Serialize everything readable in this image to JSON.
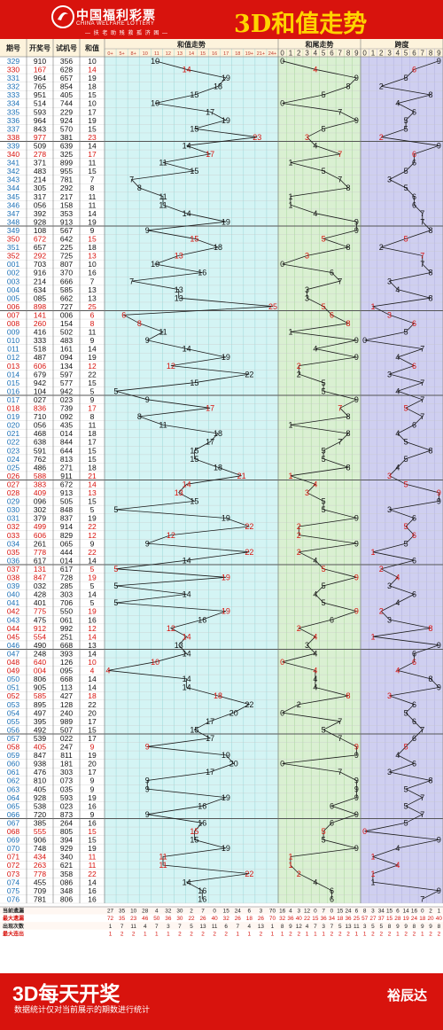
{
  "header": {
    "logo_cn": "中国福利彩票",
    "logo_en": "CHINA WELFARE LOTTERY",
    "logo_slogan": "— 扶 老 助 残 救 孤 济 困 —",
    "title": "3D和值走势"
  },
  "footer": {
    "title": "3D每天开奖",
    "subtitle": "数据统计仅对当前展示的期数进行统计",
    "author": "裕辰达"
  },
  "columns": {
    "issue": "期号",
    "draw": "开奖号",
    "test": "试机号",
    "sum": "和值",
    "sum_trend": "和值走势",
    "tail_trend": "和尾走势",
    "span_trend": "跨度",
    "sum_bins": [
      "0+",
      "5+",
      "8+",
      "10",
      "11",
      "12",
      "13",
      "14",
      "15",
      "16",
      "17",
      "18",
      "19+",
      "21+",
      "24+"
    ],
    "digits": [
      "0",
      "1",
      "2",
      "3",
      "4",
      "5",
      "6",
      "7",
      "8",
      "9"
    ]
  },
  "stats": {
    "labels": [
      "当前遗漏",
      "最大遗漏",
      "出现次数",
      "最大连出"
    ],
    "values": [
      [
        "27",
        "35",
        "10",
        "28",
        "4",
        "32",
        "30",
        "2",
        "7",
        "0",
        "15",
        "24",
        "6",
        "3",
        "70",
        "16",
        "4",
        "3",
        "12",
        "0",
        "7",
        "0",
        "15",
        "24",
        "6",
        "8",
        "3",
        "34",
        "15",
        "6",
        "14",
        "16",
        "0",
        "2",
        "1"
      ],
      [
        "72",
        "35",
        "23",
        "46",
        "50",
        "36",
        "30",
        "22",
        "26",
        "40",
        "32",
        "26",
        "18",
        "26",
        "70",
        "32",
        "36",
        "40",
        "22",
        "15",
        "36",
        "34",
        "18",
        "36",
        "25",
        "57",
        "27",
        "37",
        "15",
        "28",
        "19",
        "24",
        "18",
        "20",
        "40"
      ],
      [
        "1",
        "7",
        "11",
        "4",
        "7",
        "3",
        "7",
        "5",
        "13",
        "11",
        "6",
        "7",
        "4",
        "13",
        "1",
        "8",
        "9",
        "12",
        "4",
        "7",
        "3",
        "7",
        "5",
        "13",
        "11",
        "3",
        "5",
        "5",
        "8",
        "9",
        "9",
        "8",
        "9",
        "9",
        "8"
      ],
      [
        "1",
        "2",
        "2",
        "1",
        "1",
        "1",
        "2",
        "2",
        "2",
        "2",
        "2",
        "1",
        "1",
        "2",
        "1",
        "1",
        "2",
        "2",
        "1",
        "1",
        "1",
        "2",
        "2",
        "2",
        "1",
        "1",
        "2",
        "2",
        "2",
        "1",
        "2",
        "2",
        "1",
        "2",
        "2"
      ]
    ]
  },
  "chart_data": {
    "type": "table",
    "title": "3D和值走势",
    "columns": [
      "期号",
      "开奖号",
      "试机号",
      "和值",
      "和尾",
      "跨度"
    ],
    "rows": [
      [
        "329",
        "910",
        "356",
        "10",
        "0",
        "9"
      ],
      [
        "330",
        "167",
        "628",
        "14",
        "4",
        "6"
      ],
      [
        "331",
        "964",
        "657",
        "19",
        "9",
        "5"
      ],
      [
        "332",
        "765",
        "854",
        "18",
        "8",
        "2"
      ],
      [
        "333",
        "951",
        "405",
        "15",
        "5",
        "8"
      ],
      [
        "334",
        "514",
        "744",
        "10",
        "0",
        "4"
      ],
      [
        "335",
        "593",
        "229",
        "17",
        "7",
        "6"
      ],
      [
        "336",
        "964",
        "924",
        "19",
        "9",
        "5"
      ],
      [
        "337",
        "843",
        "570",
        "15",
        "5",
        "5"
      ],
      [
        "338",
        "977",
        "381",
        "23",
        "3",
        "2"
      ],
      [
        "339",
        "509",
        "639",
        "14",
        "4",
        "9"
      ],
      [
        "340",
        "278",
        "325",
        "17",
        "7",
        "6"
      ],
      [
        "341",
        "371",
        "899",
        "11",
        "1",
        "6"
      ],
      [
        "342",
        "483",
        "955",
        "15",
        "5",
        "5"
      ],
      [
        "343",
        "214",
        "781",
        "7",
        "7",
        "3"
      ],
      [
        "344",
        "305",
        "292",
        "8",
        "8",
        "5"
      ],
      [
        "345",
        "317",
        "217",
        "11",
        "1",
        "6"
      ],
      [
        "346",
        "056",
        "158",
        "11",
        "1",
        "6"
      ],
      [
        "347",
        "392",
        "353",
        "14",
        "4",
        "7"
      ],
      [
        "348",
        "928",
        "913",
        "19",
        "9",
        "7"
      ],
      [
        "349",
        "108",
        "567",
        "9",
        "9",
        "8"
      ],
      [
        "350",
        "672",
        "642",
        "15",
        "5",
        "5"
      ],
      [
        "351",
        "657",
        "225",
        "18",
        "8",
        "2"
      ],
      [
        "352",
        "292",
        "725",
        "13",
        "3",
        "7"
      ],
      [
        "001",
        "703",
        "807",
        "10",
        "0",
        "7"
      ],
      [
        "002",
        "916",
        "370",
        "16",
        "6",
        "8"
      ],
      [
        "003",
        "214",
        "666",
        "7",
        "7",
        "3"
      ],
      [
        "004",
        "634",
        "585",
        "13",
        "3",
        "4"
      ],
      [
        "005",
        "085",
        "662",
        "13",
        "3",
        "8"
      ],
      [
        "006",
        "898",
        "727",
        "25",
        "5",
        "1"
      ],
      [
        "007",
        "141",
        "006",
        "6",
        "6",
        "3"
      ],
      [
        "008",
        "260",
        "154",
        "8",
        "8",
        "6"
      ],
      [
        "009",
        "416",
        "502",
        "11",
        "1",
        "5"
      ],
      [
        "010",
        "333",
        "483",
        "9",
        "9",
        "0"
      ],
      [
        "011",
        "518",
        "161",
        "14",
        "4",
        "7"
      ],
      [
        "012",
        "487",
        "094",
        "19",
        "9",
        "4"
      ],
      [
        "013",
        "606",
        "134",
        "12",
        "2",
        "6"
      ],
      [
        "014",
        "679",
        "597",
        "22",
        "2",
        "3"
      ],
      [
        "015",
        "942",
        "577",
        "15",
        "5",
        "7"
      ],
      [
        "016",
        "104",
        "942",
        "5",
        "5",
        "4"
      ],
      [
        "017",
        "027",
        "023",
        "9",
        "9",
        "7"
      ],
      [
        "018",
        "836",
        "739",
        "17",
        "7",
        "5"
      ],
      [
        "019",
        "710",
        "092",
        "8",
        "8",
        "7"
      ],
      [
        "020",
        "056",
        "435",
        "11",
        "1",
        "6"
      ],
      [
        "021",
        "468",
        "014",
        "18",
        "8",
        "4"
      ],
      [
        "022",
        "638",
        "844",
        "17",
        "7",
        "5"
      ],
      [
        "023",
        "591",
        "644",
        "15",
        "5",
        "8"
      ],
      [
        "024",
        "762",
        "813",
        "15",
        "5",
        "5"
      ],
      [
        "025",
        "486",
        "271",
        "18",
        "8",
        "4"
      ],
      [
        "026",
        "588",
        "911",
        "21",
        "1",
        "3"
      ],
      [
        "027",
        "383",
        "672",
        "14",
        "4",
        "5"
      ],
      [
        "028",
        "409",
        "913",
        "13",
        "3",
        "9"
      ],
      [
        "029",
        "096",
        "505",
        "15",
        "5",
        "9"
      ],
      [
        "030",
        "302",
        "848",
        "5",
        "5",
        "3"
      ],
      [
        "031",
        "379",
        "837",
        "19",
        "9",
        "6"
      ],
      [
        "032",
        "499",
        "914",
        "22",
        "2",
        "5"
      ],
      [
        "033",
        "606",
        "829",
        "12",
        "2",
        "6"
      ],
      [
        "034",
        "261",
        "065",
        "9",
        "9",
        "5"
      ],
      [
        "035",
        "778",
        "444",
        "22",
        "2",
        "1"
      ],
      [
        "036",
        "617",
        "014",
        "14",
        "4",
        "6"
      ],
      [
        "037",
        "131",
        "617",
        "5",
        "5",
        "2"
      ],
      [
        "038",
        "847",
        "728",
        "19",
        "9",
        "4"
      ],
      [
        "039",
        "032",
        "285",
        "5",
        "5",
        "3"
      ],
      [
        "040",
        "428",
        "303",
        "14",
        "4",
        "6"
      ],
      [
        "041",
        "401",
        "706",
        "5",
        "5",
        "4"
      ],
      [
        "042",
        "775",
        "550",
        "19",
        "9",
        "2"
      ],
      [
        "043",
        "475",
        "061",
        "16",
        "6",
        "3"
      ],
      [
        "044",
        "912",
        "992",
        "12",
        "2",
        "8"
      ],
      [
        "045",
        "554",
        "251",
        "14",
        "4",
        "1"
      ],
      [
        "046",
        "490",
        "668",
        "13",
        "3",
        "9"
      ],
      [
        "047",
        "248",
        "393",
        "14",
        "4",
        "6"
      ],
      [
        "048",
        "640",
        "126",
        "10",
        "0",
        "6"
      ],
      [
        "049",
        "004",
        "095",
        "4",
        "4",
        "4"
      ],
      [
        "050",
        "806",
        "668",
        "14",
        "4",
        "8"
      ],
      [
        "051",
        "905",
        "113",
        "14",
        "4",
        "9"
      ],
      [
        "052",
        "585",
        "427",
        "18",
        "8",
        "3"
      ],
      [
        "053",
        "895",
        "128",
        "22",
        "2",
        "6"
      ],
      [
        "054",
        "497",
        "240",
        "20",
        "0",
        "5"
      ],
      [
        "055",
        "395",
        "989",
        "17",
        "7",
        "6"
      ],
      [
        "056",
        "492",
        "507",
        "15",
        "5",
        "7"
      ],
      [
        "057",
        "539",
        "022",
        "17",
        "7",
        "6"
      ],
      [
        "058",
        "405",
        "247",
        "9",
        "9",
        "5"
      ],
      [
        "059",
        "847",
        "811",
        "19",
        "9",
        "4"
      ],
      [
        "060",
        "938",
        "181",
        "20",
        "0",
        "6"
      ],
      [
        "061",
        "476",
        "303",
        "17",
        "7",
        "3"
      ],
      [
        "062",
        "810",
        "073",
        "9",
        "9",
        "8"
      ],
      [
        "063",
        "405",
        "035",
        "9",
        "9",
        "5"
      ],
      [
        "064",
        "928",
        "593",
        "19",
        "9",
        "7"
      ],
      [
        "065",
        "538",
        "023",
        "16",
        "6",
        "5"
      ],
      [
        "066",
        "720",
        "873",
        "9",
        "9",
        "7"
      ],
      [
        "067",
        "385",
        "264",
        "16",
        "6",
        "5"
      ],
      [
        "068",
        "555",
        "805",
        "15",
        "5",
        "0"
      ],
      [
        "069",
        "906",
        "394",
        "15",
        "5",
        "9"
      ],
      [
        "070",
        "748",
        "929",
        "19",
        "9",
        "4"
      ],
      [
        "071",
        "434",
        "340",
        "11",
        "1",
        "1"
      ],
      [
        "072",
        "263",
        "621",
        "11",
        "1",
        "4"
      ],
      [
        "073",
        "778",
        "358",
        "22",
        "2",
        "1"
      ],
      [
        "074",
        "455",
        "086",
        "14",
        "4",
        "1"
      ],
      [
        "075",
        "709",
        "348",
        "16",
        "6",
        "9"
      ],
      [
        "076",
        "781",
        "806",
        "16",
        "6",
        "7"
      ]
    ]
  }
}
